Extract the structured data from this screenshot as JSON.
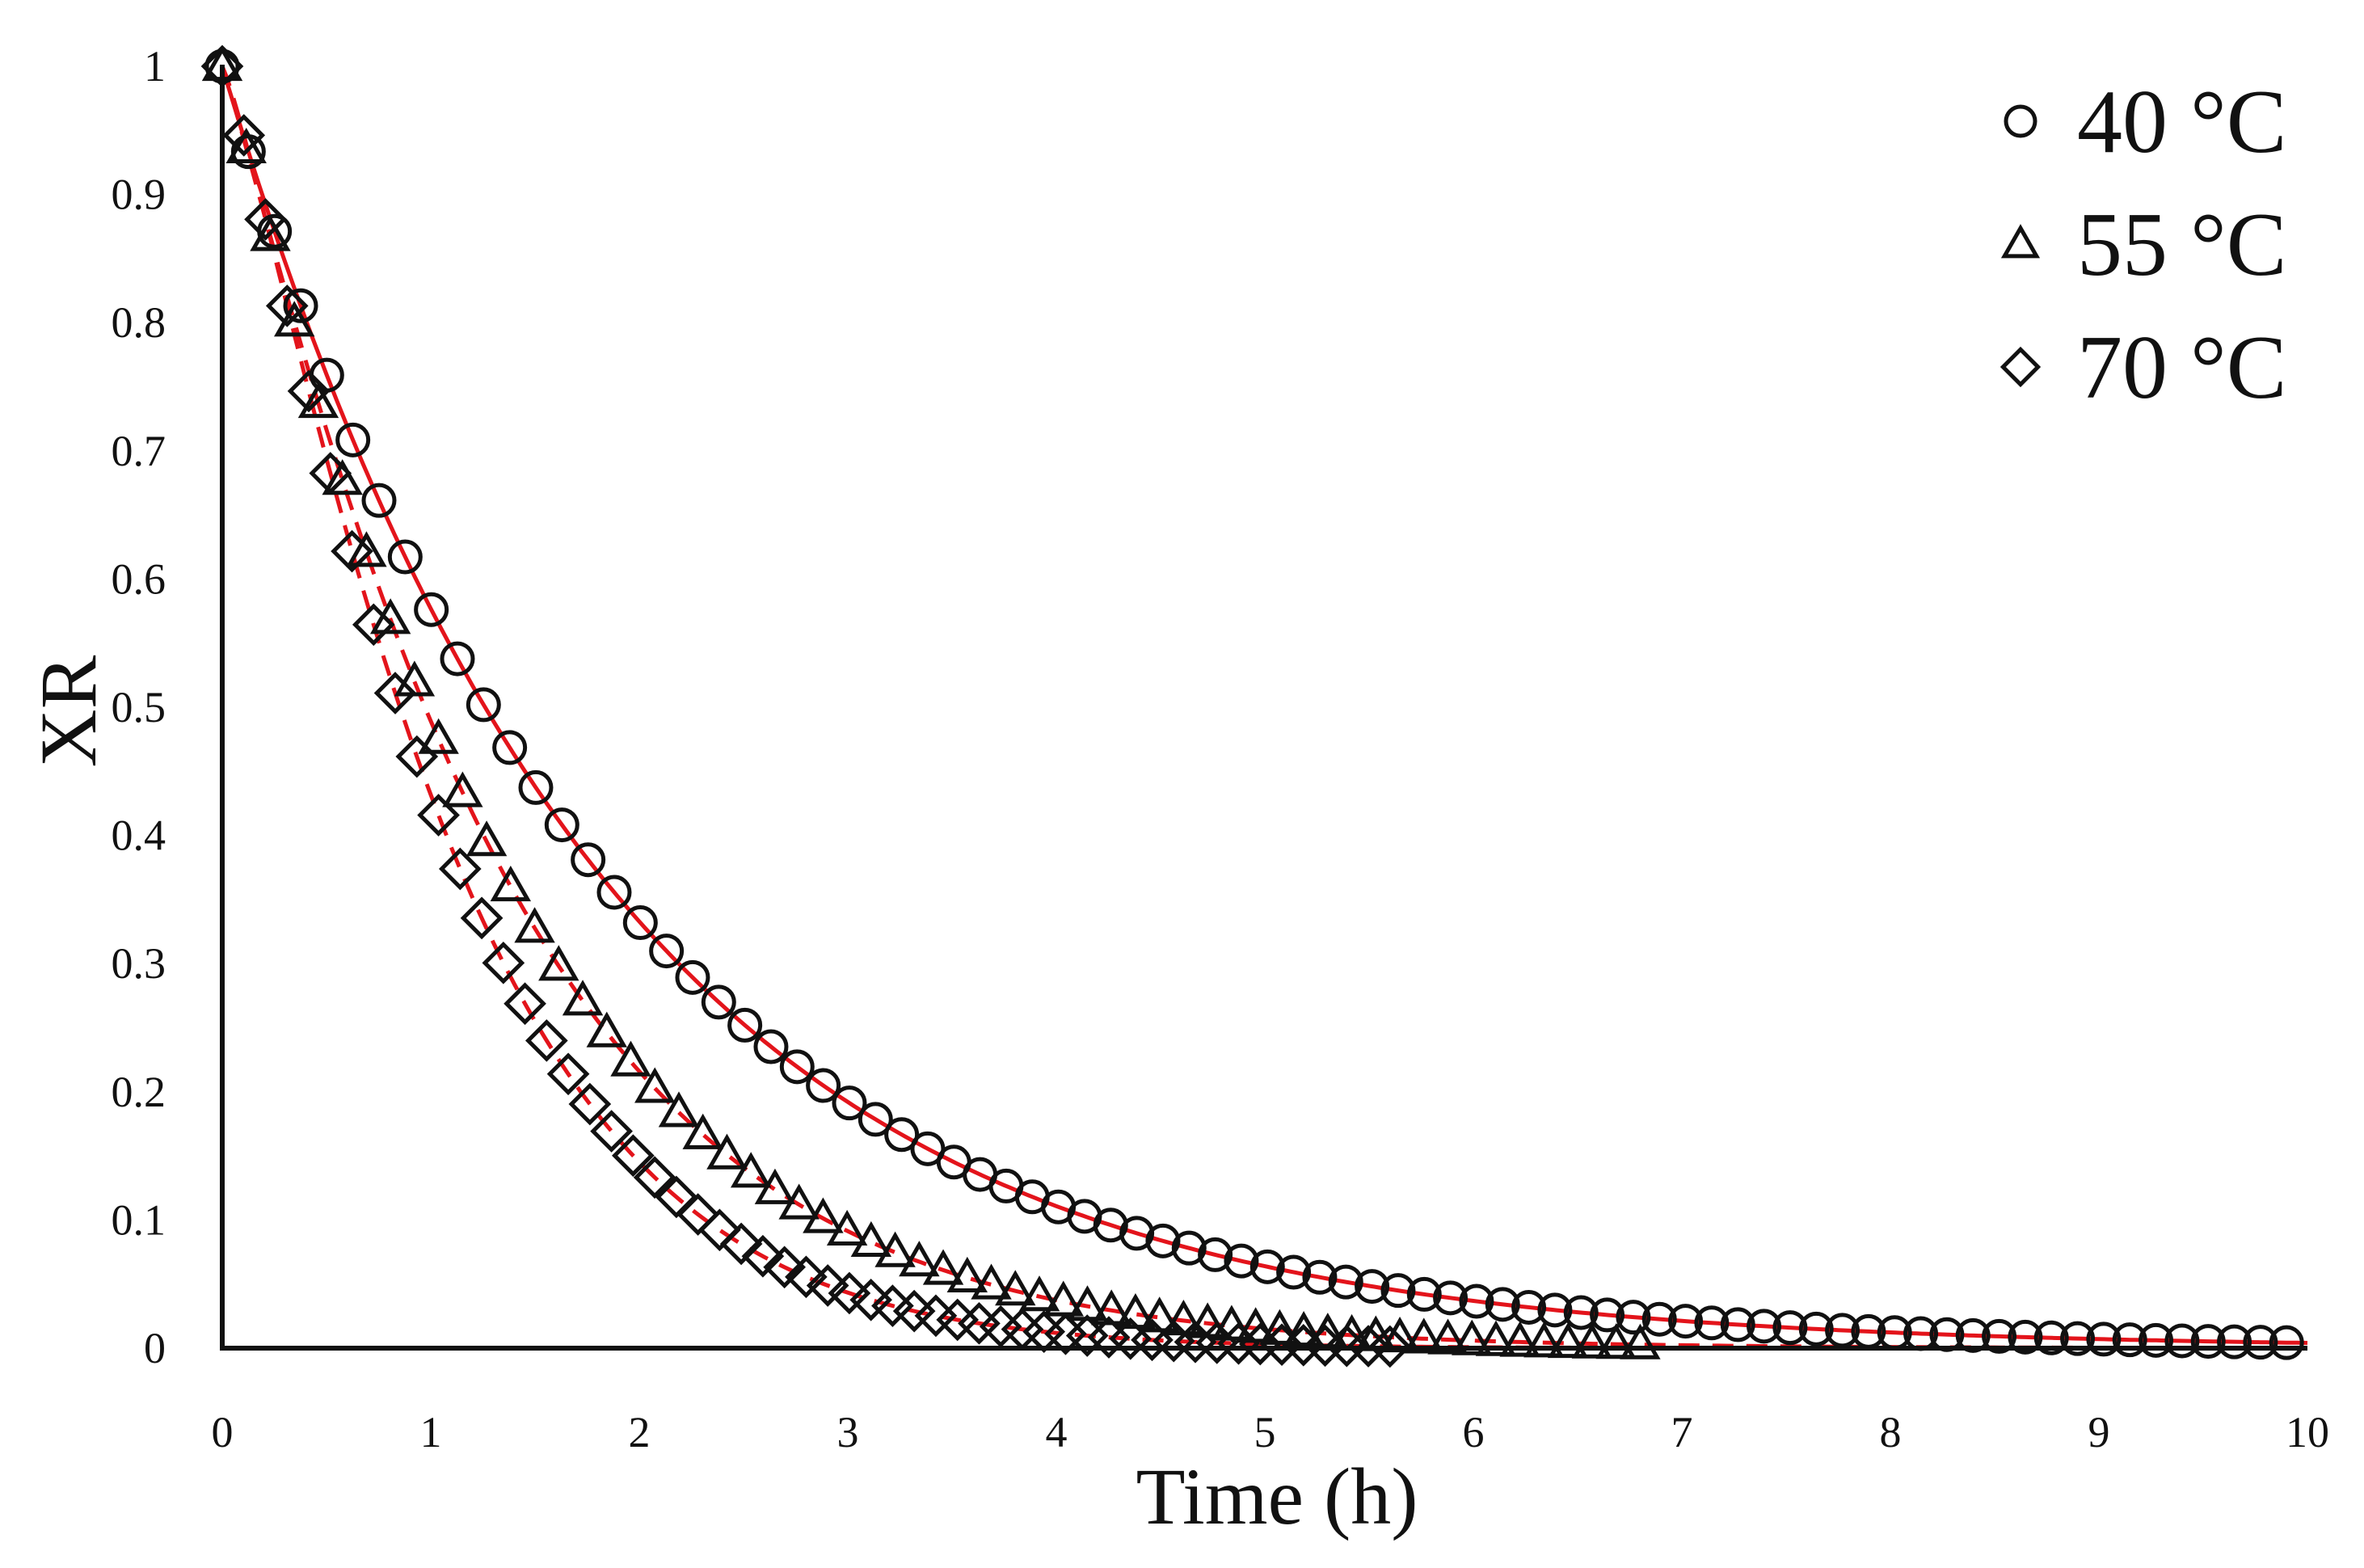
{
  "chart_data": {
    "type": "scatter",
    "title": "",
    "xlabel": "Time (h)",
    "ylabel": "XR",
    "xlim": [
      0,
      10
    ],
    "ylim": [
      0,
      1
    ],
    "xticks": [
      "0",
      "1",
      "2",
      "3",
      "4",
      "5",
      "6",
      "7",
      "8",
      "9",
      "10"
    ],
    "yticks": [
      "0",
      "0.1",
      "0.2",
      "0.3",
      "0.4",
      "0.5",
      "0.6",
      "0.7",
      "0.8",
      "0.9",
      "1"
    ],
    "grid": false,
    "legend_position": "top-right",
    "colors": {
      "markers": "#111111",
      "fit": "#e3141b",
      "axis": "#111111"
    },
    "series": [
      {
        "name": "40 °C",
        "marker": "circle",
        "k": 0.55,
        "n": 1.0,
        "t_end": 9.9,
        "n_points": 80,
        "fit_style": "solid"
      },
      {
        "name": "55 °C",
        "marker": "triangle",
        "k": 0.715,
        "n": 1.1,
        "t_end": 6.8,
        "n_points": 60,
        "fit_style": "dashed"
      },
      {
        "name": "70 °C",
        "marker": "diamond",
        "k": 0.84,
        "n": 1.2,
        "t_end": 5.6,
        "n_points": 55,
        "fit_style": "dashed"
      }
    ]
  }
}
